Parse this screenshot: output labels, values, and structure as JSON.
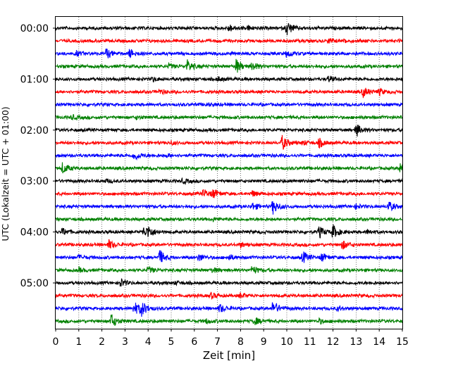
{
  "chart_data": {
    "type": "line",
    "title": "",
    "xlabel": "Zeit  [min]",
    "ylabel": "UTC (Lokalzeit = UTC + 01:00)",
    "xlim": [
      0,
      15
    ],
    "x_ticks": [
      0,
      1,
      2,
      3,
      4,
      5,
      6,
      7,
      8,
      9,
      10,
      11,
      12,
      13,
      14,
      15
    ],
    "y_tick_labels": [
      "00:00",
      "01:00",
      "02:00",
      "03:00",
      "04:00",
      "05:00"
    ],
    "trace_interval_min": 15,
    "grid": "vertical dotted lines at each minute",
    "color_cycle": [
      "#000000",
      "#ff0000",
      "#0000ff",
      "#008000"
    ],
    "series": [
      {
        "values": [
          {
            "t": 7.5,
            "a": 0.5
          },
          {
            "t": 10.0,
            "a": 1.0
          },
          {
            "t": 8.3,
            "a": 0.3
          }
        ]
      },
      {
        "values": [
          {
            "t": 11.8,
            "a": 0.3
          },
          {
            "t": 12.5,
            "a": 0.2
          }
        ]
      },
      {
        "values": [
          {
            "t": 0.9,
            "a": 0.3
          },
          {
            "t": 2.2,
            "a": 0.7
          },
          {
            "t": 3.2,
            "a": 0.6
          },
          {
            "t": 10.0,
            "a": 0.5
          }
        ]
      },
      {
        "values": [
          {
            "t": 5.7,
            "a": 0.8
          },
          {
            "t": 7.8,
            "a": 1.0
          },
          {
            "t": 8.5,
            "a": 0.6
          },
          {
            "t": 4.9,
            "a": 0.3
          }
        ]
      },
      {
        "values": [
          {
            "t": 4.2,
            "a": 0.3
          },
          {
            "t": 7.0,
            "a": 0.3
          },
          {
            "t": 11.8,
            "a": 0.4
          }
        ]
      },
      {
        "values": [
          {
            "t": 4.5,
            "a": 0.3
          },
          {
            "t": 13.3,
            "a": 0.7
          },
          {
            "t": 14.0,
            "a": 0.4
          }
        ]
      },
      {
        "values": [
          {
            "t": 6.5,
            "a": 0.2
          }
        ]
      },
      {
        "values": [
          {
            "t": 0.7,
            "a": 0.3
          },
          {
            "t": 3.5,
            "a": 0.2
          }
        ]
      },
      {
        "values": [
          {
            "t": 13.0,
            "a": 0.9
          }
        ]
      },
      {
        "values": [
          {
            "t": 9.8,
            "a": 1.0
          },
          {
            "t": 11.4,
            "a": 0.6
          },
          {
            "t": 5.0,
            "a": 0.2
          },
          {
            "t": 10.7,
            "a": 0.3
          }
        ]
      },
      {
        "values": [
          {
            "t": 3.4,
            "a": 0.7
          },
          {
            "t": 4.8,
            "a": 0.2
          }
        ]
      },
      {
        "values": [
          {
            "t": 0.3,
            "a": 0.8
          },
          {
            "t": 14.9,
            "a": 0.6
          }
        ]
      },
      {
        "values": [
          {
            "t": 5.5,
            "a": 0.3
          },
          {
            "t": 2.2,
            "a": 0.2
          }
        ]
      },
      {
        "values": [
          {
            "t": 6.4,
            "a": 0.6
          },
          {
            "t": 6.8,
            "a": 0.6
          },
          {
            "t": 8.5,
            "a": 0.4
          }
        ]
      },
      {
        "values": [
          {
            "t": 8.5,
            "a": 0.5
          },
          {
            "t": 9.4,
            "a": 1.0
          },
          {
            "t": 14.4,
            "a": 0.7
          },
          {
            "t": 13.0,
            "a": 0.3
          }
        ]
      },
      {
        "values": [
          {
            "t": 6.8,
            "a": 0.2
          }
        ]
      },
      {
        "values": [
          {
            "t": 0.3,
            "a": 0.5
          },
          {
            "t": 3.8,
            "a": 0.6
          },
          {
            "t": 4.0,
            "a": 0.7
          },
          {
            "t": 11.4,
            "a": 0.8
          },
          {
            "t": 12.0,
            "a": 0.9
          },
          {
            "t": 13.5,
            "a": 0.3
          }
        ]
      },
      {
        "values": [
          {
            "t": 2.3,
            "a": 0.6
          },
          {
            "t": 12.4,
            "a": 0.6
          },
          {
            "t": 8.0,
            "a": 0.3
          }
        ]
      },
      {
        "values": [
          {
            "t": 4.5,
            "a": 1.0
          },
          {
            "t": 6.2,
            "a": 0.5
          },
          {
            "t": 7.5,
            "a": 0.4
          },
          {
            "t": 10.7,
            "a": 0.8
          },
          {
            "t": 11.5,
            "a": 0.6
          },
          {
            "t": 1.0,
            "a": 0.3
          }
        ]
      },
      {
        "values": [
          {
            "t": 1.0,
            "a": 0.3
          },
          {
            "t": 4.0,
            "a": 0.4
          },
          {
            "t": 8.5,
            "a": 0.6
          },
          {
            "t": 6.8,
            "a": 0.3
          }
        ]
      },
      {
        "values": [
          {
            "t": 2.8,
            "a": 0.6
          },
          {
            "t": 5.2,
            "a": 0.2
          }
        ]
      },
      {
        "values": [
          {
            "t": 6.7,
            "a": 0.4
          },
          {
            "t": 8.0,
            "a": 0.3
          }
        ]
      },
      {
        "values": [
          {
            "t": 3.4,
            "a": 0.9
          },
          {
            "t": 3.7,
            "a": 1.0
          },
          {
            "t": 7.1,
            "a": 0.6
          },
          {
            "t": 9.4,
            "a": 1.0
          },
          {
            "t": 12.2,
            "a": 0.3
          }
        ]
      },
      {
        "values": [
          {
            "t": 2.4,
            "a": 1.0
          },
          {
            "t": 8.6,
            "a": 0.5
          },
          {
            "t": 11.4,
            "a": 0.3
          },
          {
            "t": 6.5,
            "a": 0.3
          }
        ]
      }
    ]
  }
}
